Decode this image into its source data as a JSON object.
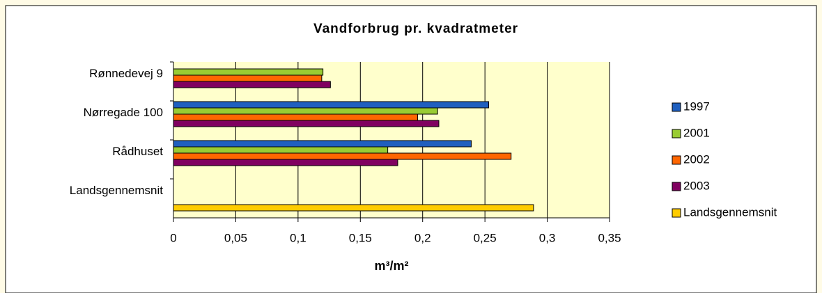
{
  "chart_data": {
    "type": "barh",
    "title": "Vandforbrug pr. kvadratmeter",
    "x_label": "m³/m²",
    "categories": [
      "Rønnedevej 9",
      "Nørregade 100",
      "Rådhuset",
      "Landsgennemsnit"
    ],
    "series": [
      {
        "name": "1997",
        "color": "#1f5fbf",
        "values": [
          null,
          0.253,
          0.239,
          null
        ]
      },
      {
        "name": "2001",
        "color": "#99cc33",
        "values": [
          0.12,
          0.212,
          0.172,
          null
        ]
      },
      {
        "name": "2002",
        "color": "#ff6600",
        "values": [
          0.119,
          0.196,
          0.271,
          null
        ]
      },
      {
        "name": "2003",
        "color": "#800060",
        "values": [
          0.126,
          0.213,
          0.18,
          null
        ]
      },
      {
        "name": "Landsgennemsnit",
        "color": "#ffcc00",
        "values": [
          null,
          null,
          null,
          0.289
        ]
      }
    ],
    "xlim": [
      0,
      0.35
    ],
    "xticks": [
      0,
      {
        "value": 0.05,
        "label": "0,05"
      },
      {
        "value": 0.1,
        "label": "0,1"
      },
      {
        "value": 0.15,
        "label": "0,15"
      },
      {
        "value": 0.2,
        "label": "0,2"
      },
      {
        "value": 0.25,
        "label": "0,25"
      },
      {
        "value": 0.3,
        "label": "0,3"
      },
      {
        "value": 0.35,
        "label": "0,35"
      }
    ],
    "grid": true,
    "legend": "right"
  }
}
